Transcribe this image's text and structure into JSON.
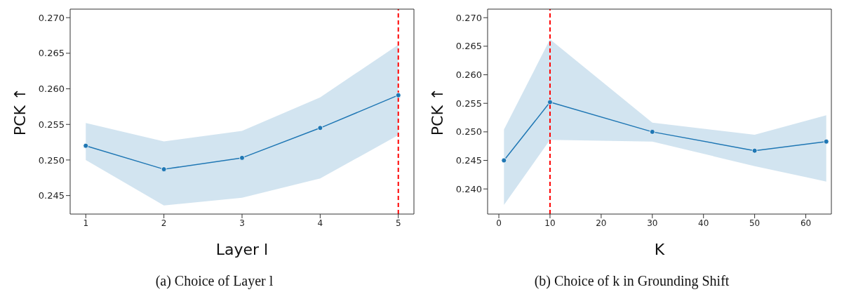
{
  "chart_data": [
    {
      "type": "line",
      "title": "(a) Choice of Layer l",
      "xlabel": "Layer l",
      "ylabel": "PCK ↑",
      "x": [
        1,
        2,
        3,
        4,
        5
      ],
      "series": [
        {
          "color": "#1f77b4",
          "values": [
            0.252,
            0.2487,
            0.2503,
            0.2545,
            0.2591
          ],
          "lower": [
            0.25,
            0.2436,
            0.2447,
            0.2474,
            0.2535
          ],
          "upper": [
            0.2552,
            0.2526,
            0.2541,
            0.2588,
            0.2662
          ]
        }
      ],
      "xlim": [
        0.8,
        5.2
      ],
      "xticks": [
        1,
        2,
        3,
        4,
        5
      ],
      "ylim": [
        0.2424,
        0.2712
      ],
      "yticks": [
        0.245,
        {
          "value": 0.25,
          "label": "0.250"
        },
        0.255,
        {
          "value": 0.26,
          "label": "0.260"
        },
        0.265,
        {
          "value": 0.27,
          "label": "0.270"
        }
      ],
      "marker": "circle",
      "grid": false,
      "ref_lines": [
        {
          "axis": "x",
          "value": 5,
          "color": "#ff0000",
          "line_style": "dashed"
        }
      ]
    },
    {
      "type": "line",
      "title": "(b) Choice of k in Grounding Shift",
      "xlabel": "K",
      "ylabel": "PCK ↑",
      "x": [
        1,
        10,
        30,
        50,
        64
      ],
      "series": [
        {
          "color": "#1f77b4",
          "values": [
            0.245,
            0.2552,
            0.25,
            0.2467,
            0.2483
          ],
          "lower": [
            0.2372,
            0.2486,
            0.2483,
            0.244,
            0.2413
          ],
          "upper": [
            0.2504,
            0.2662,
            0.2516,
            0.2495,
            0.2529
          ]
        }
      ],
      "xlim": [
        -2.2,
        65
      ],
      "xticks": [
        0,
        10,
        20,
        30,
        40,
        50,
        60
      ],
      "ylim": [
        0.2356,
        0.2715
      ],
      "yticks": [
        {
          "value": 0.24,
          "label": "0.240"
        },
        0.245,
        {
          "value": 0.25,
          "label": "0.250"
        },
        0.255,
        {
          "value": 0.26,
          "label": "0.260"
        },
        0.265,
        {
          "value": 0.27,
          "label": "0.270"
        }
      ],
      "marker": "circle",
      "grid": false,
      "ref_lines": [
        {
          "axis": "x",
          "value": 10,
          "color": "#ff0000",
          "line_style": "dashed"
        }
      ]
    }
  ]
}
